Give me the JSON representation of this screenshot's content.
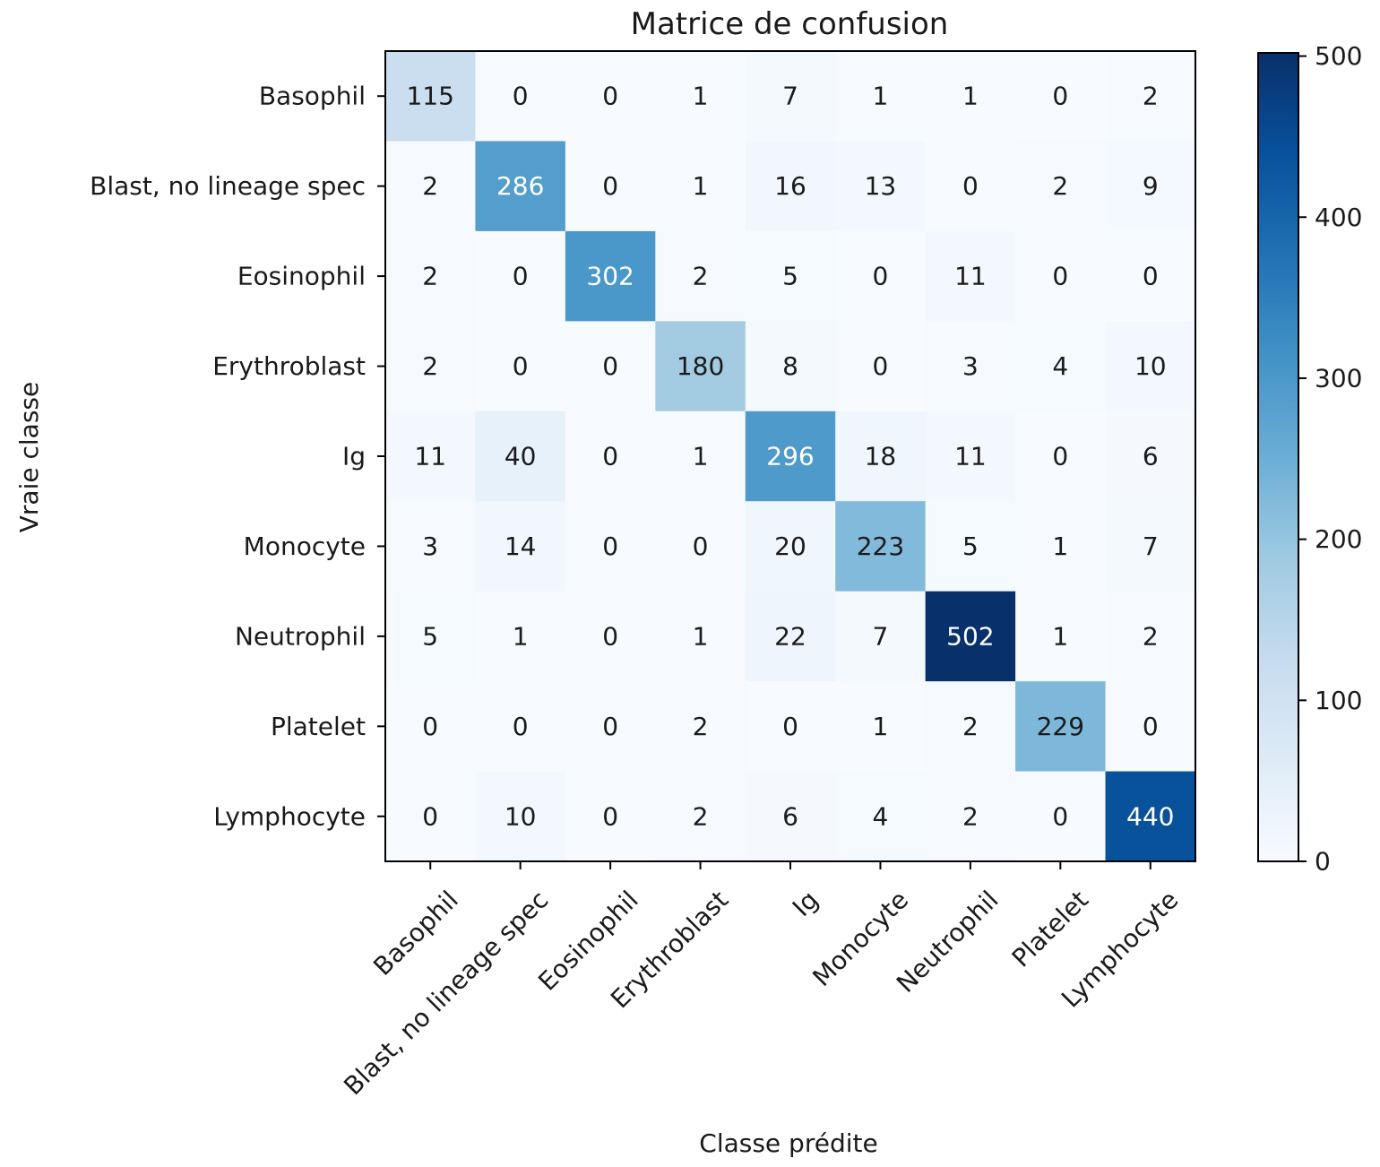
{
  "chart_data": {
    "type": "heatmap",
    "title": "Matrice de confusion",
    "xlabel": "Classe prédite",
    "ylabel": "Vraie classe",
    "x_categories": [
      "Basophil",
      "Blast, no lineage spec",
      "Eosinophil",
      "Erythroblast",
      "Ig",
      "Monocyte",
      "Neutrophil",
      "Platelet",
      "Lymphocyte"
    ],
    "y_categories": [
      "Basophil",
      "Blast, no lineage spec",
      "Eosinophil",
      "Erythroblast",
      "Ig",
      "Monocyte",
      "Neutrophil",
      "Platelet",
      "Lymphocyte"
    ],
    "values": [
      [
        115,
        0,
        0,
        1,
        7,
        1,
        1,
        0,
        2
      ],
      [
        2,
        286,
        0,
        1,
        16,
        13,
        0,
        2,
        9
      ],
      [
        2,
        0,
        302,
        2,
        5,
        0,
        11,
        0,
        0
      ],
      [
        2,
        0,
        0,
        180,
        8,
        0,
        3,
        4,
        10
      ],
      [
        11,
        40,
        0,
        1,
        296,
        18,
        11,
        0,
        6
      ],
      [
        3,
        14,
        0,
        0,
        20,
        223,
        5,
        1,
        7
      ],
      [
        5,
        1,
        0,
        1,
        22,
        7,
        502,
        1,
        2
      ],
      [
        0,
        0,
        0,
        2,
        0,
        1,
        2,
        229,
        0
      ],
      [
        0,
        10,
        0,
        2,
        6,
        4,
        2,
        0,
        440
      ]
    ],
    "colormap": "Blues",
    "vmin": 0,
    "vmax": 502,
    "colorbar_ticks": [
      "0",
      "100",
      "200",
      "300",
      "400",
      "500"
    ],
    "colorbar_tick_values": [
      0,
      100,
      200,
      300,
      400,
      500
    ],
    "grid": false
  }
}
